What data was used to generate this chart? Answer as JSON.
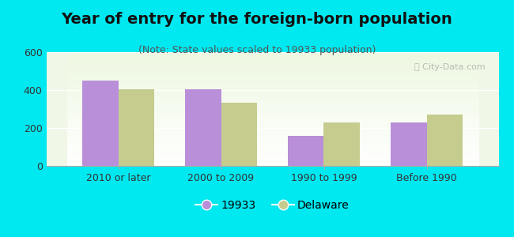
{
  "categories": [
    "2010 or later",
    "2000 to 2009",
    "1990 to 1999",
    "Before 1990"
  ],
  "series_19933": [
    450,
    405,
    160,
    228
  ],
  "series_delaware": [
    405,
    335,
    228,
    272
  ],
  "bar_color_19933": "#b88fd8",
  "bar_color_delaware": "#c5cc8e",
  "title": "Year of entry for the foreign-born population",
  "subtitle": "(Note: State values scaled to 19933 population)",
  "legend_labels": [
    "19933",
    "Delaware"
  ],
  "ylim": [
    0,
    600
  ],
  "yticks": [
    0,
    200,
    400,
    600
  ],
  "background_outer": "#00e8f0",
  "title_fontsize": 14,
  "subtitle_fontsize": 9,
  "tick_fontsize": 9,
  "legend_fontsize": 10
}
